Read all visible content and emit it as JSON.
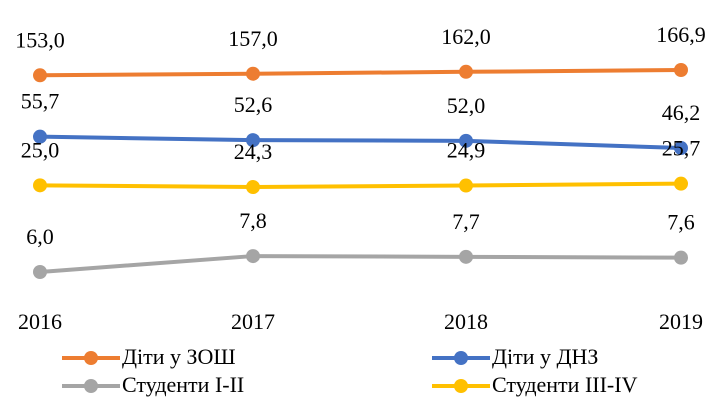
{
  "chart_data": {
    "type": "line",
    "x": [
      "2016",
      "2017",
      "2018",
      "2019"
    ],
    "yscale": "log",
    "series": [
      {
        "name": "Діти у ЗОШ",
        "color": "#ed7d31",
        "values": [
          153.0,
          157.0,
          162.0,
          166.9
        ],
        "value_labels": [
          "153,0",
          "157,0",
          "162,0",
          "166,9"
        ]
      },
      {
        "name": "Діти у ДНЗ",
        "color": "#4472c4",
        "values": [
          55.7,
          52.6,
          52.0,
          46.2
        ],
        "value_labels": [
          "55,7",
          "52,6",
          "52,0",
          "46,2"
        ]
      },
      {
        "name": "Студенти I-II",
        "color": "#a5a5a5",
        "values": [
          6.0,
          7.8,
          7.7,
          7.6
        ],
        "value_labels": [
          "6,0",
          "7,8",
          "7,7",
          "7,6"
        ]
      },
      {
        "name": "Студенти III-IV",
        "color": "#ffc000",
        "values": [
          25.0,
          24.3,
          24.9,
          25.7
        ],
        "value_labels": [
          "25,0",
          "24,3",
          "24,9",
          "25,7"
        ]
      }
    ]
  }
}
